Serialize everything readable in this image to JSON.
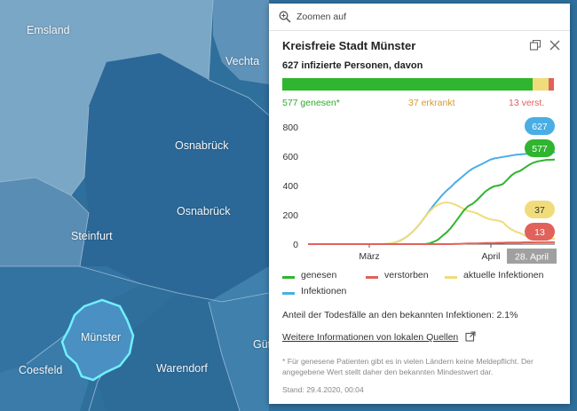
{
  "map": {
    "labels": [
      "Emsland",
      "Vechta",
      "Osnabrück",
      "Osnabrück",
      "Steinfurt",
      "Münster",
      "Coesfeld",
      "Warendorf",
      "Güt"
    ]
  },
  "popup": {
    "zoom_label": "Zoomen auf",
    "title": "Kreisfreie Stadt Münster",
    "subtitle": "627 infizierte Personen, davon",
    "stats": {
      "recovered": "577 genesen*",
      "active": "37 erkrankt",
      "deceased": "13 verst."
    },
    "legend": {
      "recovered": "genesen",
      "deceased": "verstorben",
      "active": "aktuelle Infektionen",
      "infections": "Infektionen"
    },
    "ratio_text": "Anteil der Todesfälle an den bekannten Infektionen: 2.1%",
    "link_text": "Weitere Informationen von lokalen Quellen",
    "footnote": "* Für genesene Patienten gibt es in vielen Ländern keine Meldepflicht. Der angegebene Wert stellt daher den bekannten Mindestwert dar.",
    "stand": "Stand: 29.4.2020, 00:04"
  },
  "colors": {
    "recovered": "#2fb52f",
    "deceased": "#e0625a",
    "active": "#f0dc7a",
    "infections": "#49aee3",
    "date_tag": "#a0a0a0"
  },
  "chart_data": {
    "type": "line",
    "x_tick_labels": [
      "März",
      "April"
    ],
    "ylim": [
      0,
      800
    ],
    "y_ticks": [
      0,
      200,
      400,
      600,
      800
    ],
    "date_label": "28. April",
    "end_labels": {
      "infections": "627",
      "recovered": "577",
      "active": "37",
      "deceased": "13"
    },
    "series": [
      {
        "name": "Infektionen",
        "color": "#49aee3",
        "values": [
          0,
          0,
          0,
          0,
          0,
          0,
          0,
          0,
          0,
          0,
          0,
          0,
          0,
          0,
          0,
          0,
          0,
          0,
          2,
          5,
          10,
          20,
          35,
          55,
          80,
          110,
          145,
          185,
          225,
          265,
          300,
          335,
          365,
          390,
          420,
          445,
          470,
          495,
          515,
          530,
          545,
          560,
          575,
          585,
          590,
          595,
          600,
          605,
          610,
          612,
          615,
          617,
          620,
          622,
          624,
          625,
          626,
          627
        ]
      },
      {
        "name": "genesen",
        "color": "#2fb52f",
        "values": [
          0,
          0,
          0,
          0,
          0,
          0,
          0,
          0,
          0,
          0,
          0,
          0,
          0,
          0,
          0,
          0,
          0,
          0,
          0,
          0,
          0,
          0,
          0,
          0,
          0,
          0,
          0,
          0,
          5,
          15,
          30,
          55,
          80,
          110,
          150,
          190,
          230,
          260,
          275,
          300,
          330,
          360,
          380,
          395,
          400,
          410,
          440,
          470,
          490,
          500,
          520,
          540,
          555,
          565,
          570,
          575,
          576,
          577
        ]
      },
      {
        "name": "aktuelle Infektionen",
        "color": "#f0dc7a",
        "values": [
          0,
          0,
          0,
          0,
          0,
          0,
          0,
          0,
          0,
          0,
          0,
          0,
          0,
          0,
          0,
          0,
          0,
          0,
          2,
          5,
          10,
          20,
          35,
          55,
          80,
          110,
          145,
          185,
          220,
          250,
          268,
          280,
          285,
          280,
          270,
          255,
          240,
          225,
          220,
          210,
          195,
          180,
          170,
          165,
          160,
          150,
          120,
          100,
          85,
          75,
          60,
          45,
          40,
          38,
          38,
          37,
          37,
          37
        ]
      },
      {
        "name": "verstorben",
        "color": "#e0625a",
        "values": [
          0,
          0,
          0,
          0,
          0,
          0,
          0,
          0,
          0,
          0,
          0,
          0,
          0,
          0,
          0,
          0,
          0,
          0,
          0,
          0,
          0,
          0,
          0,
          0,
          0,
          0,
          0,
          0,
          0,
          0,
          0,
          0,
          0,
          0,
          1,
          2,
          3,
          4,
          5,
          5,
          6,
          7,
          8,
          8,
          9,
          9,
          10,
          10,
          11,
          11,
          12,
          12,
          12,
          13,
          13,
          13,
          13,
          13
        ]
      }
    ]
  }
}
